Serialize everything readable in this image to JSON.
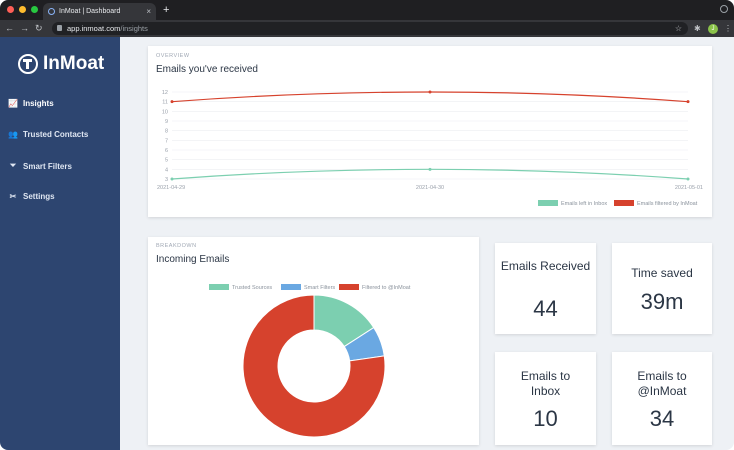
{
  "browser": {
    "tab_title": "InMoat | Dashboard",
    "tab_close": "×",
    "new_tab": "+",
    "url_host": "app.inmoat.com",
    "url_path": "/insights",
    "profile_initial": "J"
  },
  "sidebar": {
    "logo_text": "InMoat",
    "items": [
      {
        "label": "Insights",
        "icon": "chart-line-icon",
        "glyph": "📈",
        "active": true
      },
      {
        "label": "Trusted Contacts",
        "icon": "users-icon",
        "glyph": "👥",
        "active": false
      },
      {
        "label": "Smart Filters",
        "icon": "filter-icon",
        "glyph": "⏷",
        "active": false
      },
      {
        "label": "Settings",
        "icon": "tools-icon",
        "glyph": "✂",
        "active": false
      }
    ]
  },
  "overview": {
    "eyebrow": "OVERVIEW",
    "title": "Emails you've received"
  },
  "breakdown": {
    "eyebrow": "BREAKDOWN",
    "title": "Incoming Emails"
  },
  "stats": [
    {
      "label": "Emails Received",
      "value": "44"
    },
    {
      "label": "Time saved",
      "value": "39m"
    },
    {
      "label": "Emails to Inbox",
      "value": "10"
    },
    {
      "label": "Emails to @InMoat",
      "value": "34"
    }
  ],
  "chart_data": [
    {
      "type": "line",
      "x": [
        "2021-04-29",
        "2021-04-30",
        "2021-05-01"
      ],
      "ylim": [
        3,
        12
      ],
      "yticks": [
        "12",
        "11",
        "10",
        "9",
        "8",
        "7",
        "6",
        "5",
        "4",
        "3"
      ],
      "grid": true,
      "legend": "bottom-right",
      "series": [
        {
          "name": "Emails left in Inbox",
          "values": [
            3,
            4,
            3
          ],
          "color": "#7ccfb0"
        },
        {
          "name": "Emails filtered by InMoat",
          "values": [
            11,
            12,
            11
          ],
          "color": "#d6422d"
        }
      ]
    },
    {
      "type": "pie",
      "legend": "top",
      "categories": [
        "Trusted Sources",
        "Smart Filters",
        "Filtered to @InMoat"
      ],
      "values": [
        7,
        3,
        34
      ],
      "colors": [
        "#7ccfb0",
        "#6aa8e2",
        "#d6422d"
      ]
    }
  ]
}
